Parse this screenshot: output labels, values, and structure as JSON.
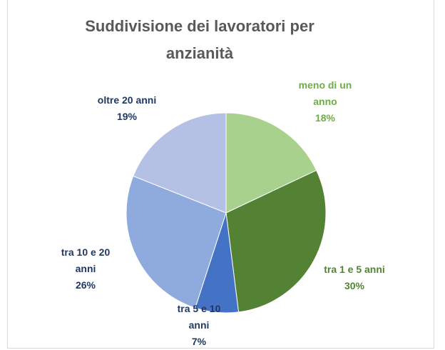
{
  "chart_data": {
    "type": "pie",
    "title": "Suddivisione dei lavoratori per anzianità",
    "categories": [
      "meno di un anno",
      "tra 1 e 5 anni",
      "tra 5 e 10 anni",
      "tra 10 e 20 anni",
      "oltre 20 anni"
    ],
    "values": [
      18,
      30,
      7,
      26,
      19
    ],
    "value_labels": [
      "18%",
      "30%",
      "7%",
      "26%",
      "19%"
    ],
    "colors": [
      "#a9d18e",
      "#548235",
      "#4472c4",
      "#8faadc",
      "#b4c0e4"
    ]
  }
}
